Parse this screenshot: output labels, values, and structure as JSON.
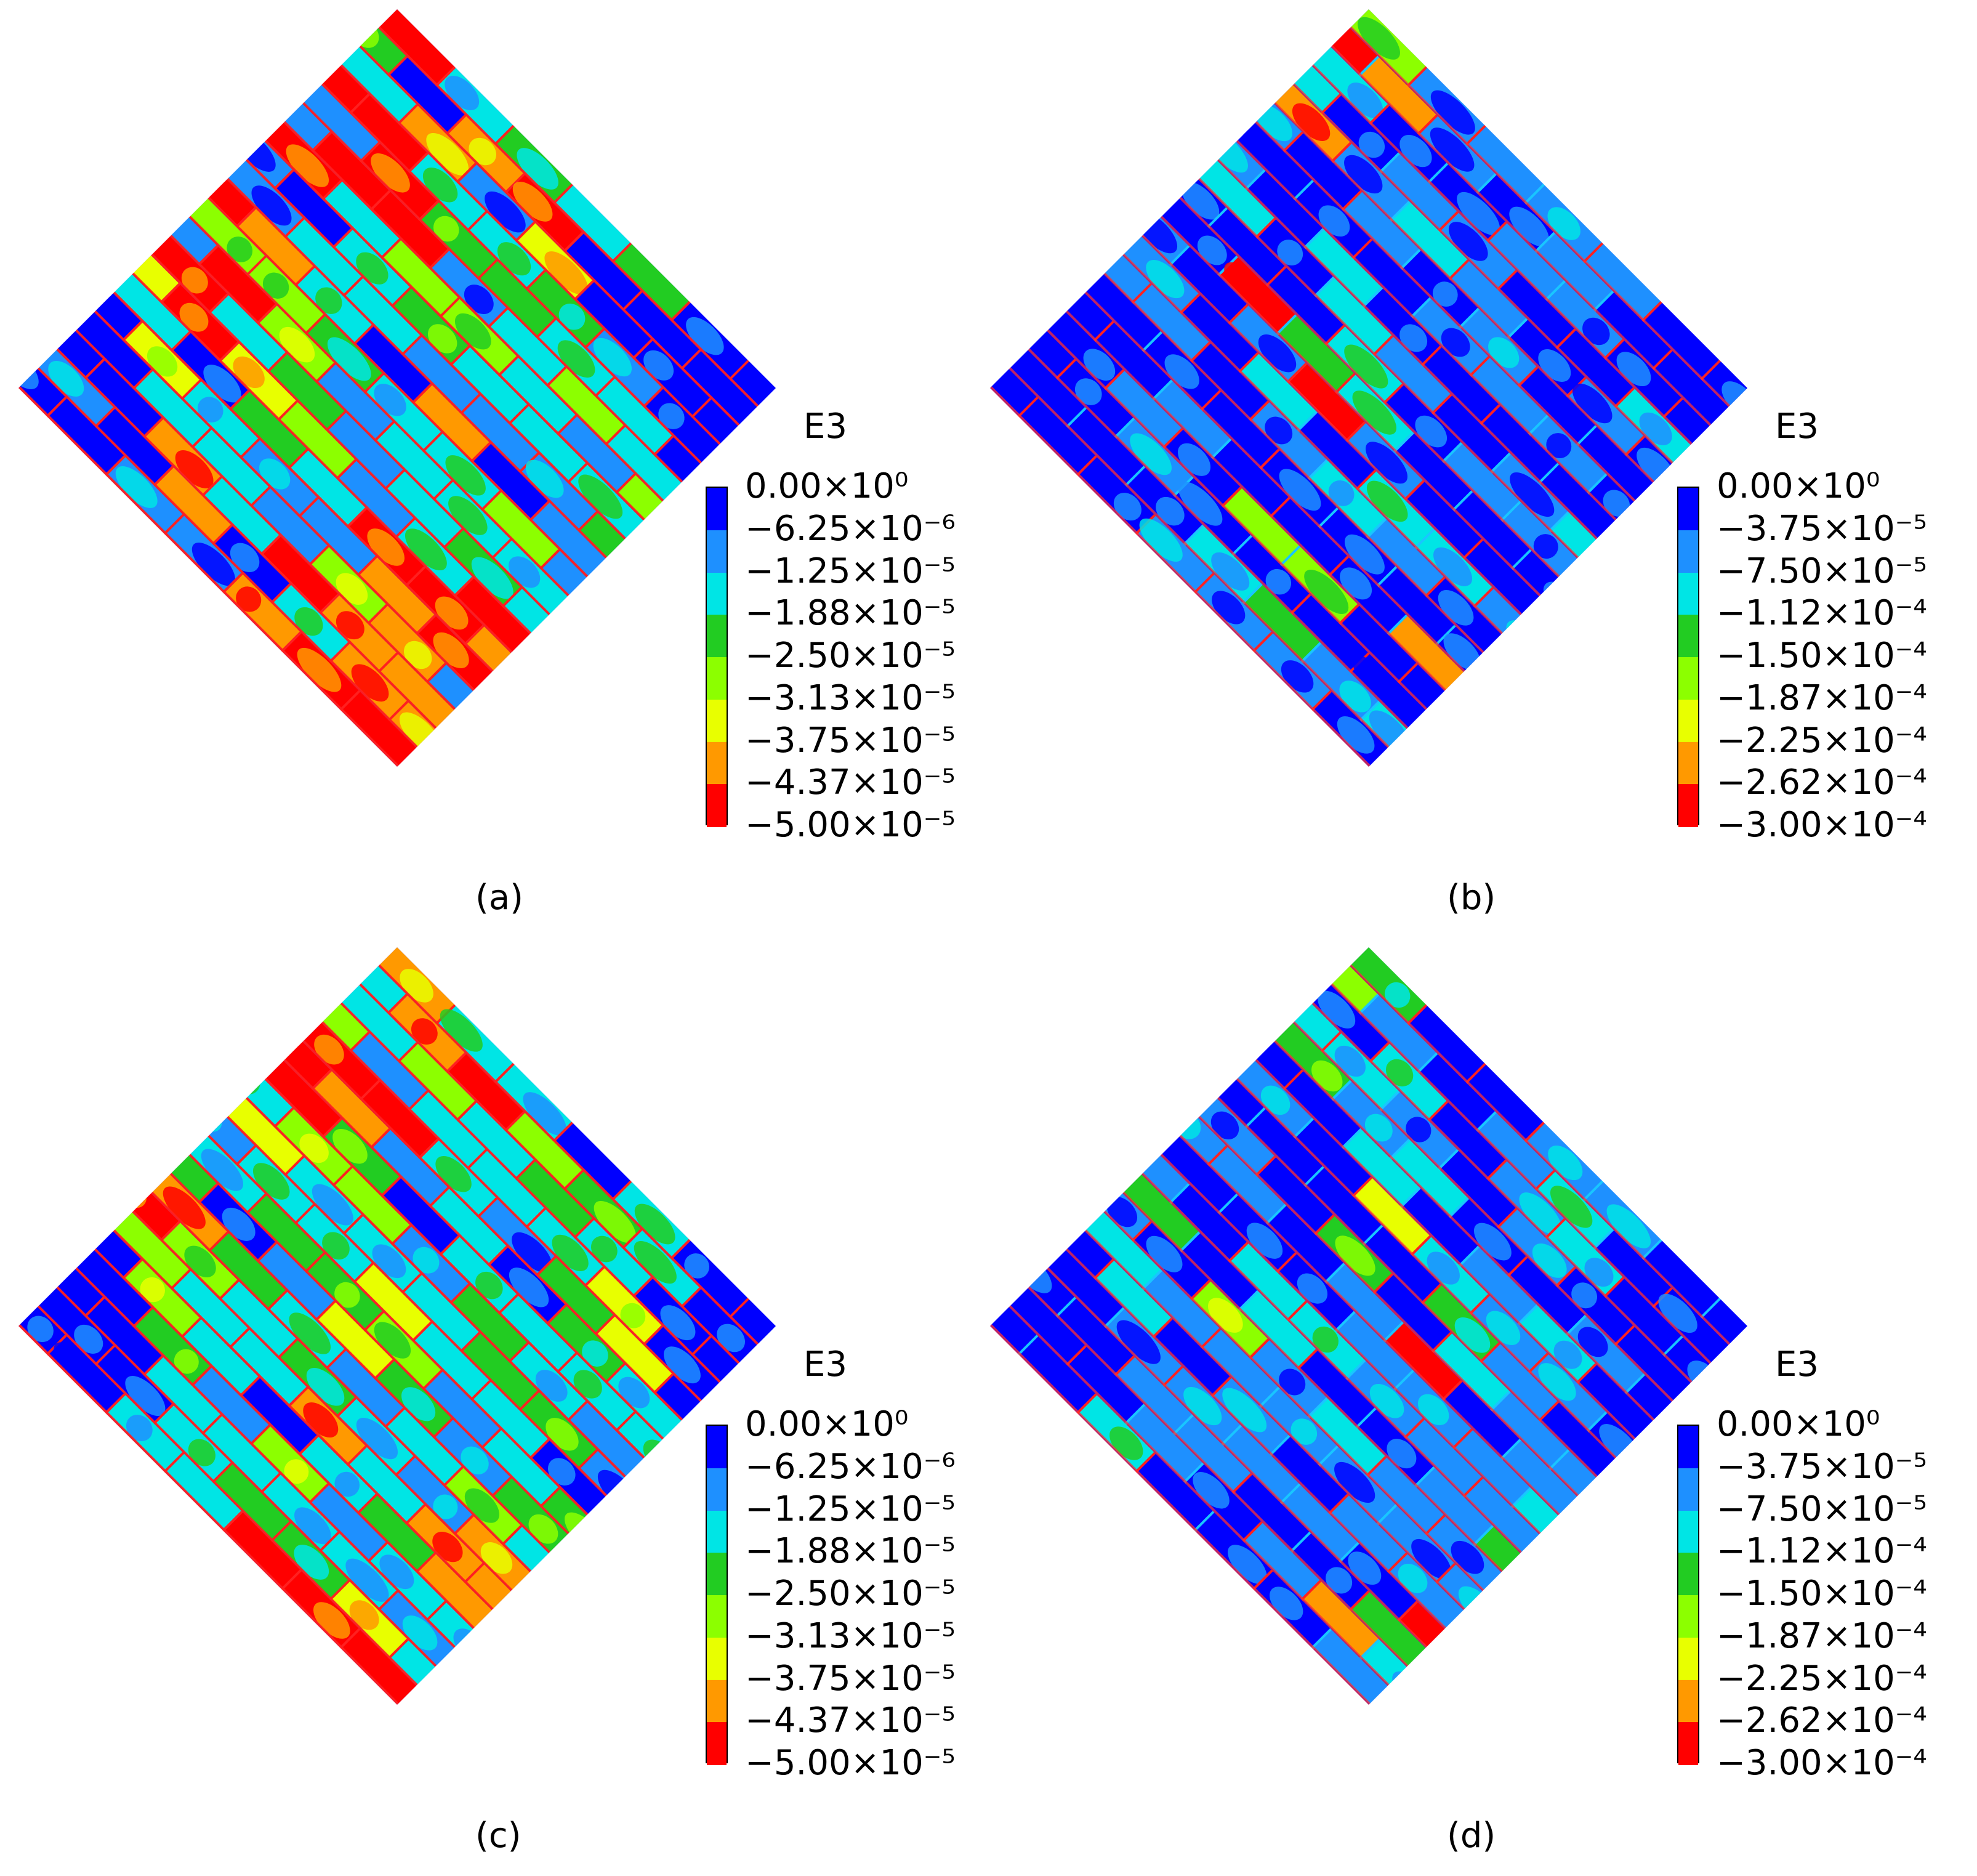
{
  "legend_colors": [
    "#0000ff",
    "#1e90ff",
    "#00e5e5",
    "#22cc22",
    "#8cff00",
    "#e8ff00",
    "#ff9900",
    "#ff0000"
  ],
  "panels": [
    {
      "caption": "(a)",
      "legend_title": "E3",
      "legend_labels": [
        "0.00×10⁰",
        "−6.25×10⁻⁶",
        "−1.25×10⁻⁵",
        "−1.88×10⁻⁵",
        "−2.50×10⁻⁵",
        "−3.13×10⁻⁵",
        "−3.75×10⁻⁵",
        "−4.37×10⁻⁵",
        "−5.00×10⁻⁵"
      ]
    },
    {
      "caption": "(b)",
      "legend_title": "E3",
      "legend_labels": [
        "0.00×10⁰",
        "−3.75×10⁻⁵",
        "−7.50×10⁻⁵",
        "−1.12×10⁻⁴",
        "−1.50×10⁻⁴",
        "−1.87×10⁻⁴",
        "−2.25×10⁻⁴",
        "−2.62×10⁻⁴",
        "−3.00×10⁻⁴"
      ]
    },
    {
      "caption": "(c)",
      "legend_title": "E3",
      "legend_labels": [
        "0.00×10⁰",
        "−6.25×10⁻⁶",
        "−1.25×10⁻⁵",
        "−1.88×10⁻⁵",
        "−2.50×10⁻⁵",
        "−3.13×10⁻⁵",
        "−3.75×10⁻⁵",
        "−4.37×10⁻⁵",
        "−5.00×10⁻⁵"
      ]
    },
    {
      "caption": "(d)",
      "legend_title": "E3",
      "legend_labels": [
        "0.00×10⁰",
        "−3.75×10⁻⁵",
        "−7.50×10⁻⁵",
        "−1.12×10⁻⁴",
        "−1.50×10⁻⁴",
        "−1.87×10⁻⁴",
        "−2.25×10⁻⁴",
        "−2.62×10⁻⁴",
        "−3.00×10⁻⁴"
      ]
    }
  ]
}
